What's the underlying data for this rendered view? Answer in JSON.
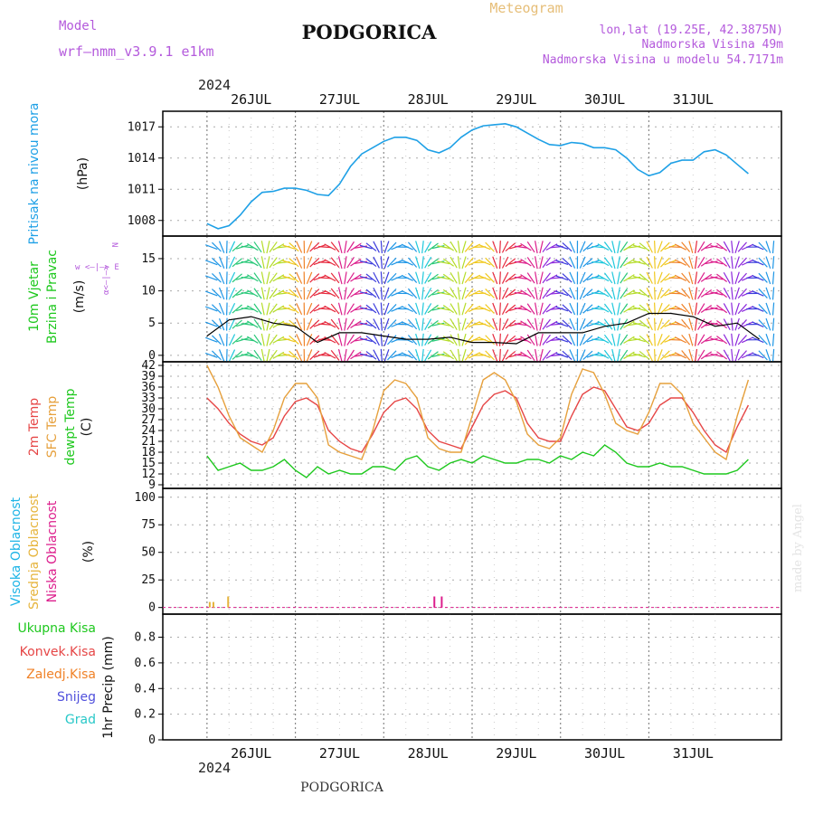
{
  "header": {
    "model_label": "Model",
    "model_name": "wrf—nmm_v3.9.1  e1km",
    "city": "PODGORICA",
    "product": "Meteogram",
    "location": "lon,lat (19.25E, 42.3875N)",
    "elevation": "Nadmorska Visina 49m",
    "model_elevation": "Nadmorska Visina u modelu 54.7171m",
    "year_top": "2024",
    "year_bottom": "2024",
    "footer_city": "PODGORICA",
    "watermark": "made by Angel"
  },
  "days": [
    "26JUL",
    "27JUL",
    "28JUL",
    "29JUL",
    "30JUL",
    "31JUL"
  ],
  "panel_labels": {
    "pressure": [
      "Pritisak na nivou mora",
      "(hPa)"
    ],
    "wind": [
      "10m Vjetar",
      "Brzina i Pravac",
      "(m/s)"
    ],
    "wind_compass": [
      "N",
      "w <—|—> E",
      "α<—|—>",
      "s"
    ],
    "temp": [
      "2m Temp",
      "SFC Temp",
      "dewpt Temp",
      "(C)"
    ],
    "cloud": [
      "Visoka Oblacnost",
      "Srednja Oblacnost",
      "Niska Oblacnost",
      "(%)"
    ],
    "precip_legend": [
      "Ukupna Kisa",
      "Konvek.Kisa",
      "Zaledj.Kisa",
      "Snijeg",
      "Grad"
    ],
    "precip_unit": "1hr Precip (mm)"
  },
  "colors": {
    "pressure": "#1ea0e6",
    "temp2m": "#e64646",
    "sfc": "#e6a03c",
    "dewpt": "#1ec81e",
    "cloud_high": "#1eb4e6",
    "cloud_mid": "#e6b43c",
    "cloud_low": "#dc1e8c",
    "precip_total": "#1ec81e",
    "precip_conv": "#e64646",
    "precip_frz": "#f08228",
    "precip_snow": "#5050dc",
    "precip_grad": "#28c8c8"
  },
  "chart_data": [
    {
      "type": "line",
      "name": "pressure",
      "y_ticks": [
        1008,
        1011,
        1014,
        1017
      ],
      "ylim": [
        1006.5,
        1018.5
      ],
      "x_hours": [
        0,
        3,
        6,
        9,
        12,
        15,
        18,
        21,
        24,
        27,
        30,
        33,
        36,
        39,
        42,
        45,
        48,
        51,
        54,
        57,
        60,
        63,
        66,
        69,
        72,
        75,
        78,
        81,
        84,
        87,
        90,
        93,
        96,
        99,
        102,
        105,
        108,
        111,
        114,
        117,
        120,
        123,
        126,
        129,
        132,
        135,
        138,
        141,
        144,
        147
      ],
      "series": [
        {
          "values": [
            1007.7,
            1007.2,
            1007.5,
            1008.5,
            1009.8,
            1010.7,
            1010.8,
            1011.1,
            1011.1,
            1010.9,
            1010.5,
            1010.4,
            1011.5,
            1013.2,
            1014.4,
            1015.0,
            1015.6,
            1016.0,
            1016.0,
            1015.7,
            1014.8,
            1014.5,
            1015.0,
            1016.0,
            1016.7,
            1017.1,
            1017.2,
            1017.3,
            1017.0,
            1016.4,
            1015.8,
            1015.3,
            1015.2,
            1015.5,
            1015.4,
            1015.0,
            1015.0,
            1014.8,
            1014.0,
            1012.9,
            1012.3,
            1012.6,
            1013.5,
            1013.8,
            1013.8,
            1014.6,
            1014.8,
            1014.3,
            1013.4,
            1012.5
          ]
        }
      ]
    },
    {
      "type": "line",
      "name": "wind_speed",
      "y_ticks": [
        0,
        5,
        10,
        15
      ],
      "ylim": [
        -1,
        18.5
      ],
      "x_hours": [
        0,
        6,
        12,
        18,
        24,
        30,
        36,
        42,
        48,
        54,
        60,
        66,
        72,
        78,
        84,
        90,
        96,
        102,
        108,
        114,
        120,
        126,
        132,
        138,
        144,
        150
      ],
      "series": [
        {
          "values": [
            3,
            5.5,
            6,
            5,
            4.5,
            2,
            3.5,
            3.5,
            3,
            2.5,
            2.5,
            2.8,
            2,
            2,
            1.8,
            3.5,
            3.5,
            3.5,
            4.5,
            5,
            6.5,
            6.5,
            6,
            4.5,
            5,
            2.5
          ]
        }
      ]
    },
    {
      "type": "line",
      "name": "temperature",
      "y_ticks": [
        9,
        12,
        15,
        18,
        21,
        24,
        27,
        30,
        33,
        36,
        39,
        42
      ],
      "ylim": [
        8,
        43
      ],
      "x_hours": [
        0,
        3,
        6,
        9,
        12,
        15,
        18,
        21,
        24,
        27,
        30,
        33,
        36,
        39,
        42,
        45,
        48,
        51,
        54,
        57,
        60,
        63,
        66,
        69,
        72,
        75,
        78,
        81,
        84,
        87,
        90,
        93,
        96,
        99,
        102,
        105,
        108,
        111,
        114,
        117,
        120,
        123,
        126,
        129,
        132,
        135,
        138,
        141,
        144,
        147
      ],
      "series": [
        {
          "values": [
            33,
            30,
            26,
            23,
            21,
            20,
            22,
            28,
            32,
            33,
            31,
            24,
            21,
            19,
            18,
            23,
            29,
            32,
            33,
            30,
            24,
            21,
            20,
            19,
            25,
            31,
            34,
            35,
            33,
            26,
            22,
            21,
            21,
            28,
            34,
            36,
            35,
            30,
            25,
            24,
            26,
            31,
            33,
            33,
            29,
            24,
            20,
            18,
            25,
            31
          ]
        },
        {
          "values": [
            42,
            36,
            28,
            22,
            20,
            18,
            24,
            33,
            37,
            37,
            33,
            20,
            18,
            17,
            16,
            24,
            35,
            38,
            37,
            33,
            22,
            19,
            18,
            18,
            28,
            38,
            40,
            38,
            32,
            23,
            20,
            19,
            22,
            34,
            41,
            40,
            34,
            26,
            24,
            23,
            29,
            37,
            37,
            34,
            26,
            22,
            18,
            16,
            28,
            38
          ]
        },
        {
          "values": [
            17,
            13,
            14,
            15,
            13,
            13,
            14,
            16,
            13,
            11,
            14,
            12,
            13,
            12,
            12,
            14,
            14,
            13,
            16,
            17,
            14,
            13,
            15,
            16,
            15,
            17,
            16,
            15,
            15,
            16,
            16,
            15,
            17,
            16,
            18,
            17,
            20,
            18,
            15,
            14,
            14,
            15,
            14,
            14,
            13,
            12,
            12,
            12,
            13,
            16
          ]
        }
      ]
    },
    {
      "type": "bar",
      "name": "cloudiness",
      "y_ticks": [
        0,
        25,
        50,
        75,
        100
      ],
      "ylim": [
        -6,
        108
      ],
      "series": [
        {
          "x_hours": [
            0.5,
            1.5,
            5.5,
            61.5,
            63.5
          ],
          "values": [
            5,
            5,
            10,
            10,
            10
          ]
        }
      ]
    },
    {
      "type": "line",
      "name": "precipitation",
      "y_ticks": [
        0,
        0.2,
        0.4,
        0.6,
        0.8
      ],
      "ylim": [
        0,
        0.98
      ],
      "series": []
    }
  ]
}
